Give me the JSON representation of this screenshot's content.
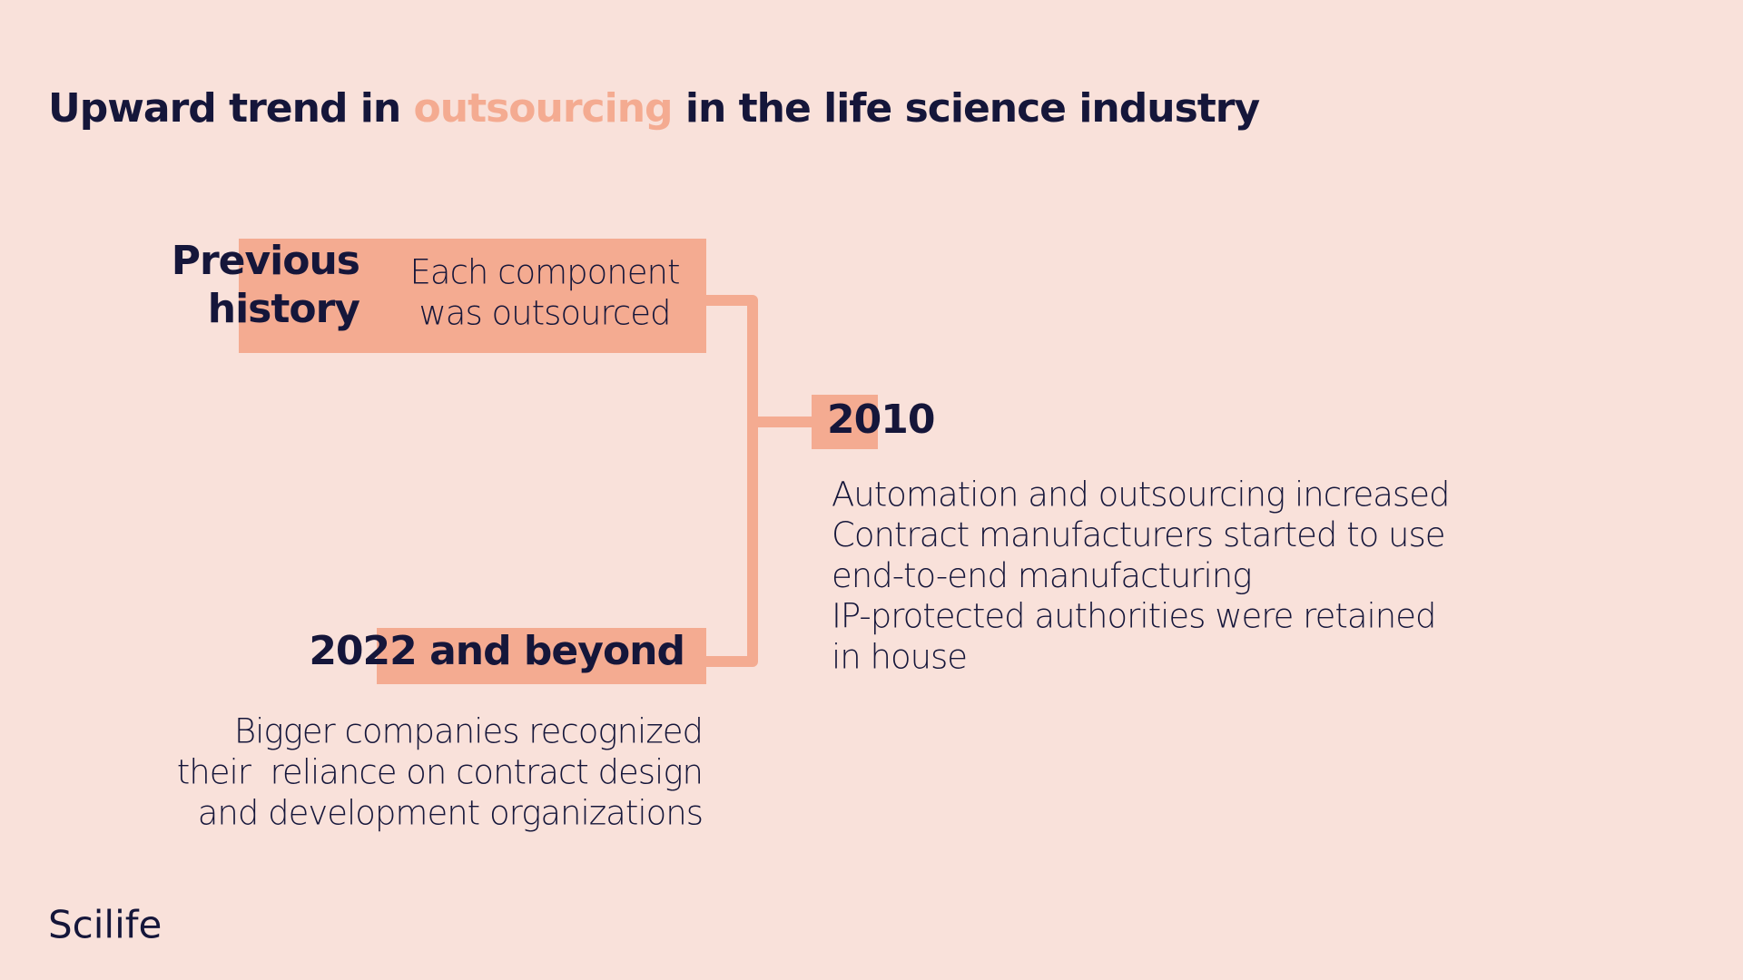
{
  "header": {
    "title": {
      "before": "Upward trend in",
      "highlight": "outsourcing",
      "after": "in the life science industry"
    }
  },
  "nodes": [
    {
      "label": [
        "Previous",
        "history"
      ],
      "description": [
        "Each component",
        "was outsourced"
      ]
    },
    {
      "label": [
        "2010"
      ],
      "description": [
        "Automation and outsourcing increased",
        "Contract manufacturers started to use",
        "end-to-end manufacturing",
        "IP-protected authorities were retained",
        "in house"
      ]
    },
    {
      "label": [
        "2022 and beyond"
      ],
      "description": [
        "Bigger companies recognized",
        "their  reliance on contract design",
        "and development organizations"
      ]
    }
  ],
  "footer": {
    "brand": "Scilife"
  }
}
